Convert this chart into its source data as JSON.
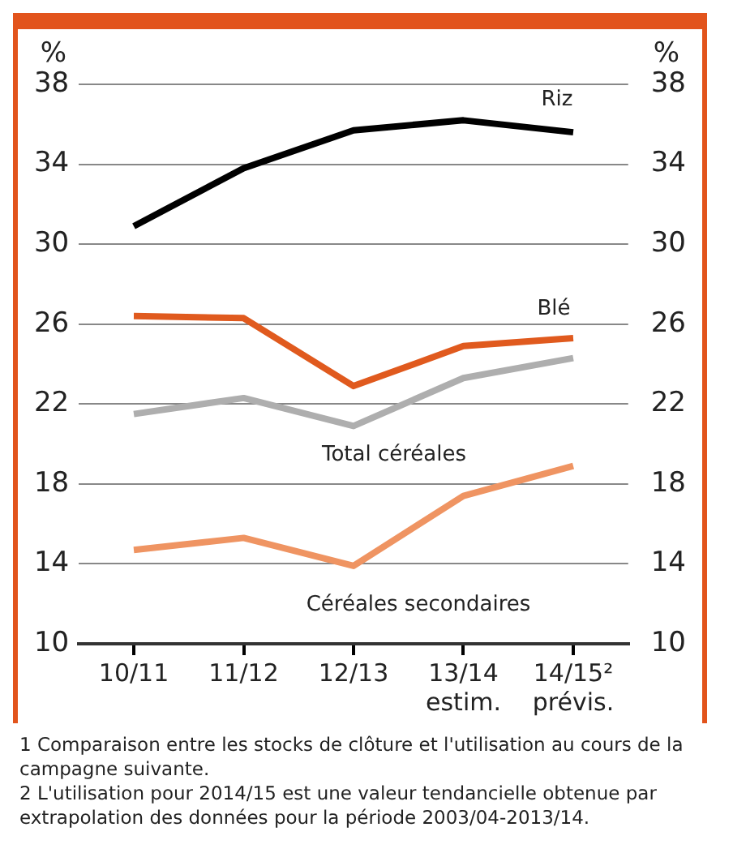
{
  "chart_data": {
    "type": "line",
    "ylabel": "%",
    "y2label": "%",
    "categories": [
      "10/11",
      "11/12",
      "12/13",
      "13/14\nestim.",
      "14/15²\nprévis."
    ],
    "series": [
      {
        "name": "Riz",
        "color": "#000000",
        "values": [
          30.9,
          33.8,
          35.7,
          36.2,
          35.6
        ]
      },
      {
        "name": "Blé",
        "color": "#e05a1e",
        "values": [
          26.4,
          26.3,
          22.9,
          24.9,
          25.3
        ]
      },
      {
        "name": "Total céréales",
        "color": "#aeaeae",
        "values": [
          21.5,
          22.3,
          20.9,
          23.3,
          24.3
        ]
      },
      {
        "name": "Céréales secondaires",
        "color": "#ef9462",
        "values": [
          14.7,
          15.3,
          13.9,
          17.4,
          18.9
        ]
      }
    ],
    "ylim": [
      10,
      38
    ],
    "yticks": [
      10,
      14,
      18,
      22,
      26,
      30,
      34,
      38
    ],
    "y2lim": [
      10,
      38
    ],
    "y2ticks": [
      10,
      14,
      18,
      22,
      26,
      30,
      34,
      38
    ],
    "grid": "y",
    "legend": false,
    "marker": "none",
    "line_style": "solid",
    "annotations": [
      "1 Comparaison entre les stocks de clôture et l'utilisation au cours de la campagne suivante.",
      "2 L'utilisation pour 2014/15 est une valeur tendancielle obtenue par extrapolation des données pour la période 2003/04-2013/14."
    ]
  }
}
